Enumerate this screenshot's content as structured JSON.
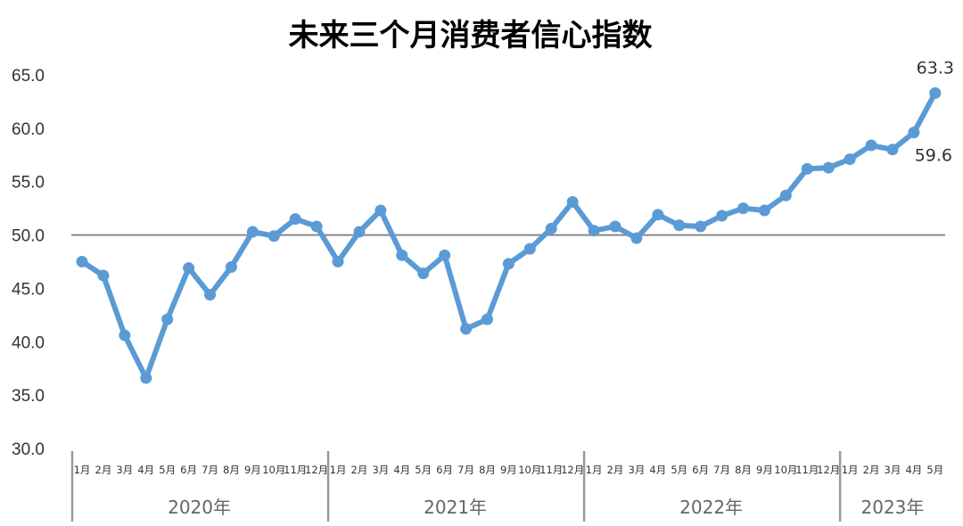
{
  "chart_data": {
    "type": "line",
    "title": "未来三个月消费者信心指数",
    "xlabel": "",
    "ylabel": "",
    "ylim": [
      30,
      65
    ],
    "yticks": [
      "30.0",
      "35.0",
      "40.0",
      "45.0",
      "50.0",
      "55.0",
      "60.0",
      "65.0"
    ],
    "reference_line": 50,
    "grid": false,
    "line_color": "#5b9bd5",
    "years": [
      {
        "label": "2020年",
        "months": [
          "1月",
          "2月",
          "3月",
          "4月",
          "5月",
          "6月",
          "7月",
          "8月",
          "9月",
          "10月",
          "11月",
          "12月"
        ]
      },
      {
        "label": "2021年",
        "months": [
          "1月",
          "2月",
          "3月",
          "4月",
          "5月",
          "6月",
          "7月",
          "8月",
          "9月",
          "10月",
          "11月",
          "12月"
        ]
      },
      {
        "label": "2022年",
        "months": [
          "1月",
          "2月",
          "3月",
          "4月",
          "5月",
          "6月",
          "7月",
          "8月",
          "9月",
          "10月",
          "11月",
          "12月"
        ]
      },
      {
        "label": "2023年",
        "months": [
          "1月",
          "2月",
          "3月",
          "4月",
          "5月"
        ]
      }
    ],
    "values": [
      47.5,
      46.2,
      40.6,
      36.6,
      42.1,
      46.9,
      44.4,
      47.0,
      50.3,
      49.9,
      51.5,
      50.8,
      47.5,
      50.3,
      52.3,
      48.1,
      46.4,
      48.1,
      41.2,
      42.1,
      47.3,
      48.7,
      50.6,
      53.1,
      50.4,
      50.8,
      49.7,
      51.9,
      50.9,
      50.8,
      51.8,
      52.5,
      52.3,
      53.7,
      56.2,
      56.3,
      57.1,
      58.4,
      58.0,
      59.6,
      63.3
    ],
    "data_labels": [
      {
        "index": 39,
        "text": "59.6"
      },
      {
        "index": 40,
        "text": "63.3"
      }
    ]
  }
}
